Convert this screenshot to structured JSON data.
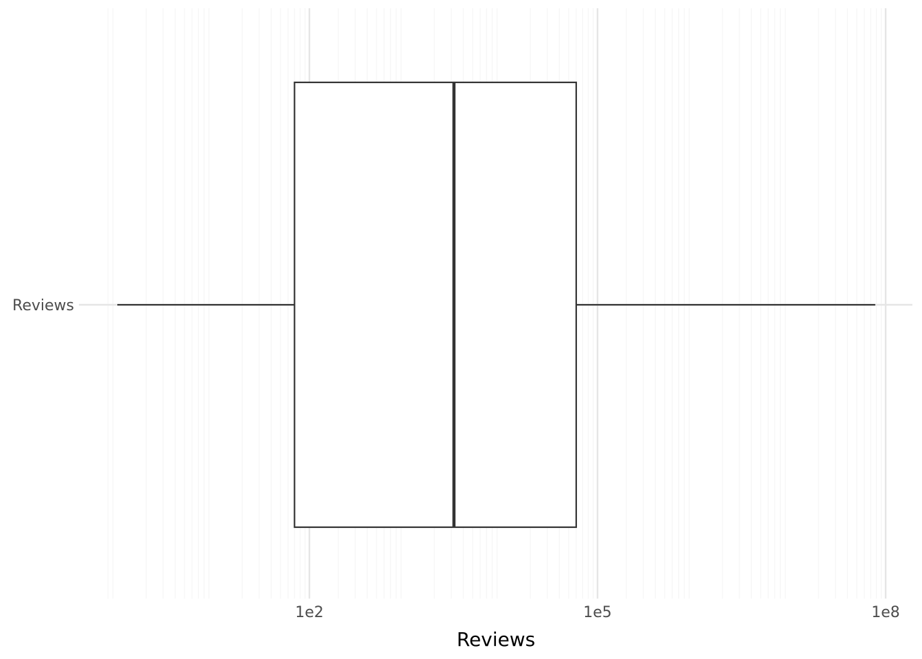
{
  "chart_data": {
    "type": "boxplot",
    "orientation": "horizontal",
    "xlabel": "Reviews",
    "ylabel": "",
    "x_scale": "log10",
    "xlim": [
      0.8,
      200000000
    ],
    "x_ticks": [
      {
        "value": 100,
        "label": "1e2"
      },
      {
        "value": 100000,
        "label": "1e5"
      },
      {
        "value": 100000000,
        "label": "1e8"
      }
    ],
    "categories": [
      "Reviews"
    ],
    "boxes": [
      {
        "category": "Reviews",
        "whisker_low": 1,
        "q1": 70,
        "median": 3200,
        "q3": 60000,
        "whisker_high": 78000000
      }
    ],
    "grid": true,
    "colors": {
      "box_stroke": "#333333",
      "box_fill": "#ffffff",
      "grid_major": "#e5e5e5",
      "grid_minor": "#f5f5f5",
      "tick_text": "#4d4d4d",
      "title_text": "#000000"
    }
  }
}
